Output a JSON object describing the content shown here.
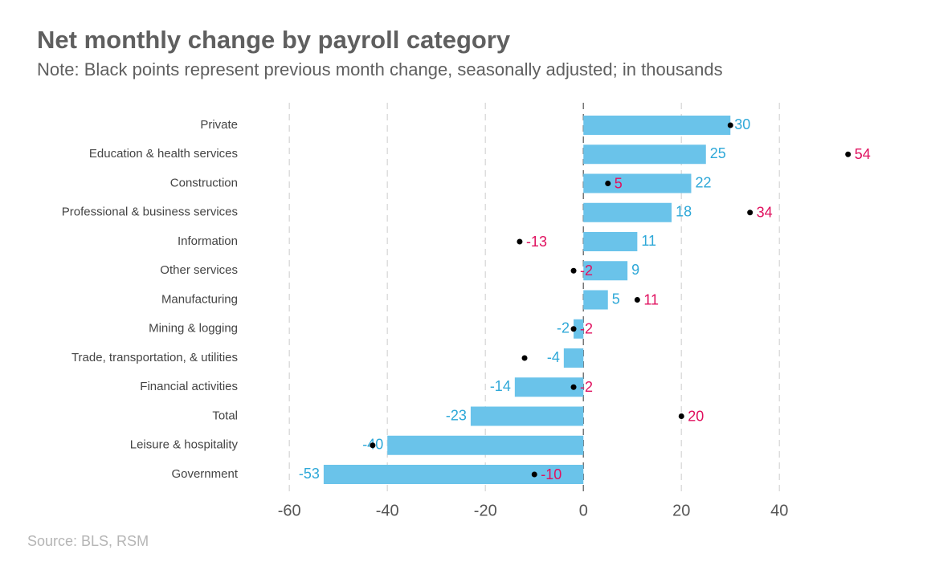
{
  "chart_data": {
    "type": "bar_dot",
    "orientation": "horizontal",
    "title": "Net monthly change by payroll category",
    "subtitle": "Note: Black points represent previous month change, seasonally adjusted; in thousands",
    "source": "Source: BLS, RSM",
    "categories": [
      "Private",
      "Education & health services",
      "Construction",
      "Professional & business services",
      "Information",
      "Other services",
      "Manufacturing",
      "Mining & logging",
      "Trade, transportation, & utilities",
      "Financial activities",
      "Total",
      "Leisure & hospitality",
      "Government"
    ],
    "series": [
      {
        "color": "#6ac3ea",
        "label_color": "#2ea8d8",
        "values": [
          30,
          25,
          22,
          18,
          11,
          9,
          5,
          -2,
          -4,
          -14,
          -23,
          -40,
          -53
        ]
      },
      {
        "color": "#000000",
        "label_color": "#e0115f",
        "values": [
          30,
          54,
          5,
          34,
          -13,
          -2,
          11,
          -2,
          -12,
          -2,
          20,
          -43,
          -10
        ],
        "value_labels": [
          null,
          "54",
          "5",
          "34",
          "-13",
          "-2",
          "11",
          "-2",
          null,
          "-2",
          "20",
          null,
          "-10"
        ]
      }
    ],
    "xlim": [
      -62,
      57
    ],
    "xticks": [
      -60,
      -40,
      -20,
      0,
      20,
      40
    ],
    "grid": true
  }
}
